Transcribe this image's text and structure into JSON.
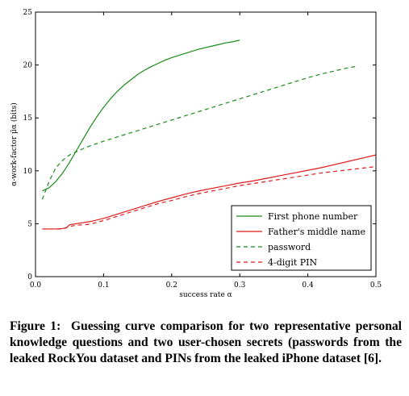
{
  "chart_data": {
    "type": "line",
    "xlabel": "success rate α",
    "ylabel": "α-work-factor  μ̃α (bits)",
    "xlim": [
      0,
      0.5
    ],
    "ylim": [
      0,
      25
    ],
    "xticks": [
      "0.0",
      "0.1",
      "0.2",
      "0.3",
      "0.4",
      "0.5"
    ],
    "yticks": [
      "0",
      "5",
      "10",
      "15",
      "20",
      "25"
    ],
    "grid": false,
    "legend_position": "lower-right",
    "series": [
      {
        "name": "First phone number",
        "color": "#1a8a1a",
        "dash": "solid",
        "x": [
          0.01,
          0.02,
          0.03,
          0.04,
          0.05,
          0.06,
          0.07,
          0.08,
          0.09,
          0.1,
          0.11,
          0.12,
          0.13,
          0.14,
          0.15,
          0.16,
          0.17,
          0.18,
          0.19,
          0.2,
          0.21,
          0.22,
          0.23,
          0.24,
          0.25,
          0.26,
          0.27,
          0.28,
          0.29,
          0.3
        ],
        "y": [
          8.1,
          8.4,
          9.0,
          9.8,
          10.8,
          11.9,
          13.0,
          14.1,
          15.1,
          16.0,
          16.8,
          17.5,
          18.1,
          18.6,
          19.1,
          19.5,
          19.85,
          20.15,
          20.45,
          20.7,
          20.9,
          21.1,
          21.3,
          21.5,
          21.65,
          21.8,
          21.95,
          22.1,
          22.2,
          22.35
        ]
      },
      {
        "name": "Father's middle name",
        "color": "#e01b1b",
        "dash": "solid",
        "x": [
          0.01,
          0.02,
          0.03,
          0.04,
          0.045,
          0.05,
          0.06,
          0.07,
          0.08,
          0.1,
          0.12,
          0.14,
          0.16,
          0.18,
          0.2,
          0.22,
          0.24,
          0.26,
          0.28,
          0.3,
          0.32,
          0.34,
          0.36,
          0.38,
          0.4,
          0.42,
          0.44,
          0.46,
          0.48,
          0.5
        ],
        "y": [
          4.5,
          4.5,
          4.5,
          4.55,
          4.6,
          4.9,
          5.0,
          5.1,
          5.2,
          5.5,
          5.9,
          6.3,
          6.7,
          7.1,
          7.45,
          7.8,
          8.1,
          8.35,
          8.6,
          8.85,
          9.05,
          9.3,
          9.55,
          9.8,
          10.05,
          10.3,
          10.6,
          10.9,
          11.2,
          11.5
        ]
      },
      {
        "name": "password",
        "color": "#1a8a1a",
        "dash": "dashed",
        "x": [
          0.01,
          0.02,
          0.03,
          0.04,
          0.05,
          0.06,
          0.07,
          0.08,
          0.1,
          0.12,
          0.14,
          0.16,
          0.18,
          0.2,
          0.22,
          0.24,
          0.26,
          0.28,
          0.3,
          0.32,
          0.34,
          0.36,
          0.38,
          0.4,
          0.42,
          0.44,
          0.46,
          0.47
        ],
        "y": [
          7.3,
          9.0,
          10.3,
          11.0,
          11.5,
          11.8,
          12.1,
          12.35,
          12.8,
          13.2,
          13.6,
          14.0,
          14.4,
          14.8,
          15.2,
          15.6,
          16.0,
          16.4,
          16.8,
          17.2,
          17.6,
          18.0,
          18.4,
          18.8,
          19.15,
          19.45,
          19.75,
          19.85
        ]
      },
      {
        "name": "4-digit PIN",
        "color": "#e01b1b",
        "dash": "dashed",
        "x": [
          0.01,
          0.02,
          0.03,
          0.04,
          0.05,
          0.06,
          0.08,
          0.1,
          0.12,
          0.14,
          0.16,
          0.18,
          0.2,
          0.22,
          0.24,
          0.26,
          0.28,
          0.3,
          0.32,
          0.34,
          0.36,
          0.38,
          0.4,
          0.42,
          0.44,
          0.46,
          0.48,
          0.5
        ],
        "y": [
          4.5,
          4.5,
          4.5,
          4.5,
          4.75,
          4.85,
          4.95,
          5.3,
          5.7,
          6.1,
          6.5,
          6.9,
          7.2,
          7.55,
          7.85,
          8.1,
          8.35,
          8.6,
          8.8,
          9.0,
          9.2,
          9.4,
          9.6,
          9.8,
          9.95,
          10.1,
          10.25,
          10.4
        ]
      }
    ]
  },
  "caption": {
    "label": "Figure 1:",
    "text": "Guessing curve comparison for two representative personal knowledge questions and two user-chosen secrets (passwords from the leaked RockYou dataset and PINs from the leaked iPhone dataset [6]."
  }
}
